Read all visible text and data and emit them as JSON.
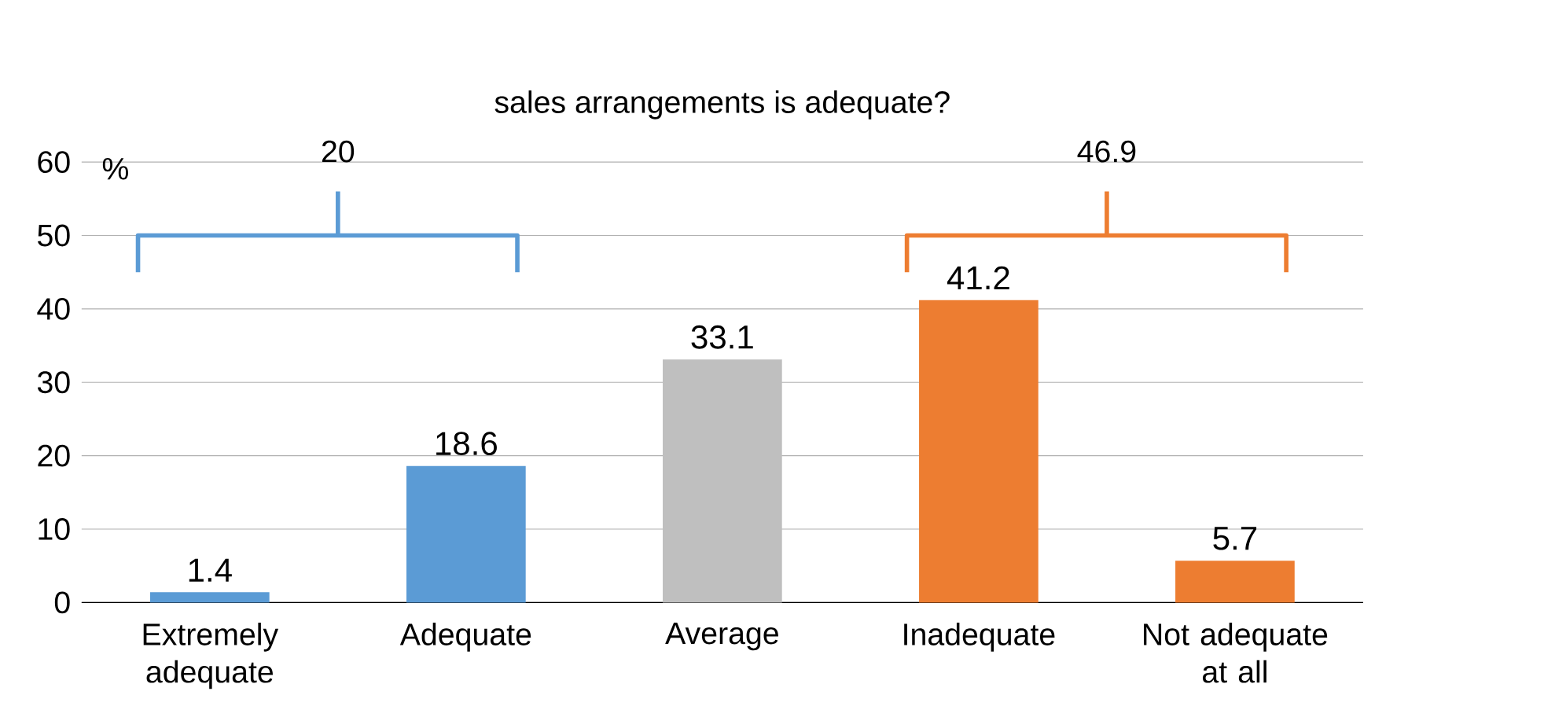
{
  "chart_data": {
    "type": "bar",
    "title": "sales arrangements is adequate?",
    "ylabel": "%",
    "categories": [
      "Extremely adequate",
      "Adequate",
      "Average",
      "Inadequate",
      "Not adequate at all"
    ],
    "values": [
      1.4,
      18.6,
      33.1,
      41.2,
      5.7
    ],
    "colors": [
      "#5b9bd5",
      "#5b9bd5",
      "#bfbfbf",
      "#ed7d31",
      "#ed7d31"
    ],
    "ylim": [
      0,
      60
    ],
    "yticks": [
      0,
      10,
      20,
      30,
      40,
      50,
      60
    ],
    "grid": "y",
    "data_labels": true,
    "annotations": [
      "20",
      "46.9"
    ]
  }
}
